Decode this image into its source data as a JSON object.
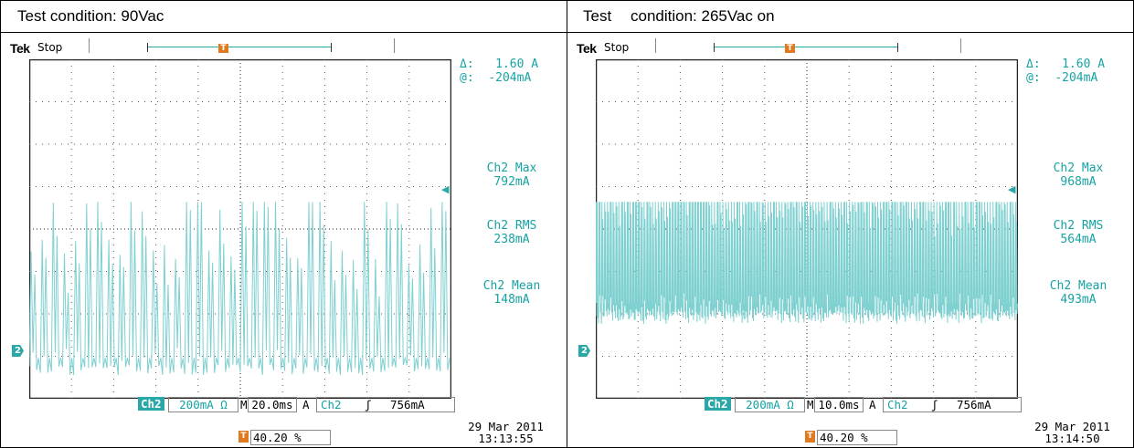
{
  "header": {
    "left": "Test condition: 90Vac",
    "right_word": "Test",
    "right_rest": "condition: 265Vac on"
  },
  "panels": [
    {
      "brand": "Tek",
      "state": "Stop",
      "trigger_marker": "T",
      "delta_label": "Δ:",
      "delta_value": "1.60 A",
      "at_label": "@:",
      "at_value": "-204mA",
      "max_label": "Ch2 Max",
      "max_value": "792mA",
      "rms_label": "Ch2 RMS",
      "rms_value": "238mA",
      "mean_label": "Ch2 Mean",
      "mean_value": "148mA",
      "channel_marker": "2",
      "ch_tag": "Ch2",
      "scale": "200mA Ω",
      "timebase_label": "M",
      "timebase": "20.0ms",
      "trig_mode": "A",
      "trig_src": "Ch2",
      "trig_slope": "ʃ",
      "trig_level": "756mA",
      "date": "29 Mar  2011",
      "time": "13:13:55",
      "trig_pos": "40.20 %",
      "signal": {
        "cycles": 38,
        "baseline": 0.9,
        "peak": 0.5,
        "density": "sparse"
      }
    },
    {
      "brand": "Tek",
      "state": "Stop",
      "trigger_marker": "T",
      "delta_label": "Δ:",
      "delta_value": "1.60 A",
      "at_label": "@:",
      "at_value": "-204mA",
      "max_label": "Ch2 Max",
      "max_value": "968mA",
      "rms_label": "Ch2 RMS",
      "rms_value": "564mA",
      "mean_label": "Ch2 Mean",
      "mean_value": "493mA",
      "channel_marker": "2",
      "ch_tag": "Ch2",
      "scale": "200mA Ω",
      "timebase_label": "M",
      "timebase": "10.0ms",
      "trig_mode": "A",
      "trig_src": "Ch2",
      "trig_slope": "ʃ",
      "trig_level": "756mA",
      "date": "29 Mar  2011",
      "time": "13:14:50",
      "trig_pos": "40.20 %",
      "signal": {
        "cycles": 150,
        "baseline": 0.74,
        "peak": 0.3,
        "density": "dense"
      }
    }
  ],
  "colors": {
    "trace": "#7fd0d0",
    "accent": "#16a3a3",
    "trigger": "#e07a21",
    "grid": "#333333"
  }
}
